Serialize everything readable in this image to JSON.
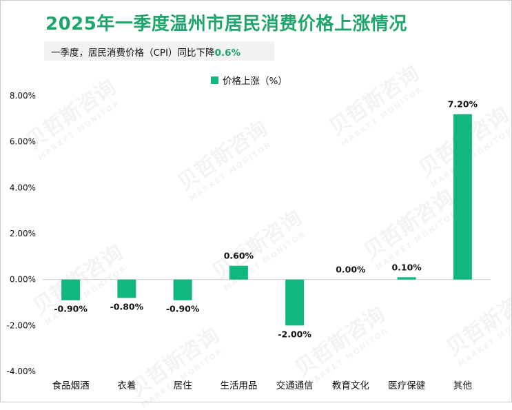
{
  "title": "2025年一季度温州市居民消费价格上涨情况",
  "subtitle": {
    "text": "一季度，居民消费价格（CPI）同比下降",
    "highlight": "0.6%"
  },
  "watermark": {
    "name": "贝哲斯咨询",
    "sub": "MARKET MONITOR"
  },
  "colors": {
    "bar": "#12b681",
    "title": "#1fa56b"
  },
  "chart_data": {
    "type": "bar",
    "title": "2025年一季度温州市居民消费价格上涨情况",
    "legend": "价格上涨（%）",
    "categories": [
      "食品烟酒",
      "衣着",
      "居住",
      "生活用品",
      "交通通信",
      "教育文化",
      "医疗保健",
      "其他"
    ],
    "values": [
      -0.9,
      -0.8,
      -0.9,
      0.6,
      -2.0,
      0.0,
      0.1,
      7.2
    ],
    "value_labels": [
      "-0.90%",
      "-0.80%",
      "-0.90%",
      "0.60%",
      "-2.00%",
      "0.00%",
      "0.10%",
      "7.20%"
    ],
    "yticks": [
      8,
      6,
      4,
      2,
      0,
      -2,
      -4
    ],
    "ytick_labels": [
      "8.00%",
      "6.00%",
      "4.00%",
      "2.00%",
      "0.00%",
      "-2.00%",
      "-4.00%"
    ],
    "ylim": [
      -4,
      8
    ],
    "xlabel": "",
    "ylabel": "",
    "grid": false
  }
}
